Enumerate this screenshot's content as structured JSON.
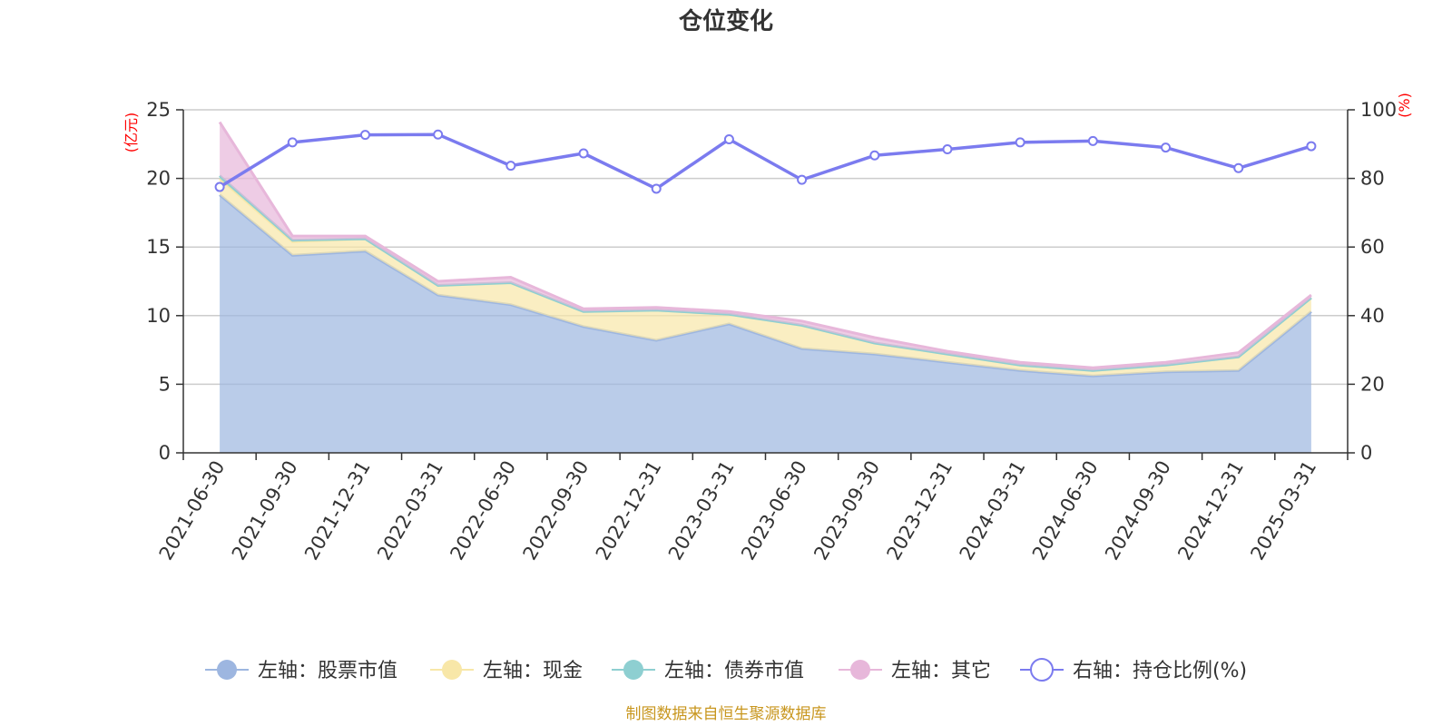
{
  "colors": {
    "stock": "#9db6e0",
    "cash": "#f8e7a8",
    "bond": "#8ecfd1",
    "other": "#e7b7da",
    "ratio": "#7b7bef",
    "grid": "#cccccc",
    "axis": "#333333",
    "unit": "#ff0000",
    "source": "#c8961e"
  },
  "chart_data": {
    "type": "area",
    "title": "仓位变化",
    "left_unit": "(亿元)",
    "right_unit": "(%)",
    "x": [
      "2021-06-30",
      "2021-09-30",
      "2021-12-31",
      "2022-03-31",
      "2022-06-30",
      "2022-09-30",
      "2022-12-31",
      "2023-03-31",
      "2023-06-30",
      "2023-09-30",
      "2023-12-31",
      "2024-03-31",
      "2024-06-30",
      "2024-09-30",
      "2024-12-31",
      "2025-03-31"
    ],
    "ylim_left": [
      0,
      25
    ],
    "yticks_left": [
      0,
      5,
      10,
      15,
      20,
      25
    ],
    "ylim_right": [
      0,
      100
    ],
    "yticks_right": [
      0,
      20,
      40,
      60,
      80,
      100
    ],
    "grid": true,
    "legend_position": "bottom",
    "stacked_series": [
      {
        "key": "stock",
        "name": "左轴：股票市值",
        "values": [
          18.8,
          14.4,
          14.7,
          11.5,
          10.8,
          9.2,
          8.2,
          9.4,
          7.6,
          7.2,
          6.6,
          6.0,
          5.6,
          5.9,
          6.0,
          10.3
        ]
      },
      {
        "key": "cash",
        "name": "左轴：现金",
        "values": [
          1.2,
          1.0,
          0.9,
          0.7,
          1.6,
          1.1,
          2.2,
          0.7,
          1.7,
          0.8,
          0.6,
          0.4,
          0.4,
          0.5,
          1.0,
          1.0
        ]
      },
      {
        "key": "bond",
        "name": "左轴：债券市值",
        "values": [
          0.2,
          0.1,
          0.0,
          0.0,
          0.0,
          0.0,
          0.0,
          0.0,
          0.0,
          0.0,
          0.0,
          0.0,
          0.0,
          0.0,
          0.0,
          0.0
        ]
      },
      {
        "key": "other",
        "name": "左轴：其它",
        "values": [
          3.9,
          0.3,
          0.2,
          0.3,
          0.4,
          0.2,
          0.2,
          0.2,
          0.3,
          0.4,
          0.2,
          0.2,
          0.2,
          0.2,
          0.3,
          0.2
        ]
      }
    ],
    "line_series": {
      "key": "ratio",
      "name": "右轴：持仓比例(%)",
      "values": [
        77.5,
        90.5,
        92.7,
        92.8,
        83.7,
        87.3,
        77.0,
        91.4,
        79.6,
        86.7,
        88.5,
        90.5,
        90.9,
        89.0,
        83.0,
        89.4
      ]
    }
  },
  "footer": {
    "source": "制图数据来自恒生聚源数据库"
  }
}
